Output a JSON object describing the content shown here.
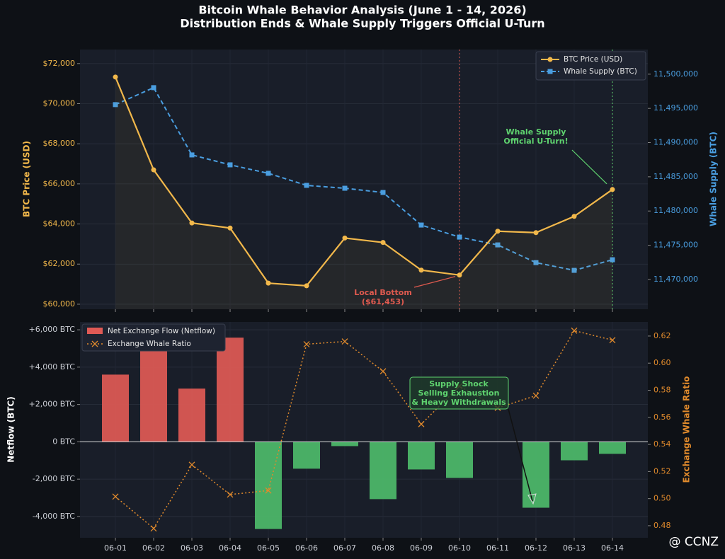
{
  "chart_data": [
    {
      "type": "line",
      "title": "Bitcoin Whale Behavior Analysis (June 1 - 14, 2026)",
      "subtitle": "Distribution Ends & Whale Supply Triggers Official U-Turn",
      "ylabel": "BTC Price (USD)",
      "y2label": "Whale Supply (BTC)",
      "ylim": [
        59750,
        72700
      ],
      "yticks": [
        {
          "value": 60000,
          "label": "$60,000"
        },
        {
          "value": 62000,
          "label": "$62,000"
        },
        {
          "value": 64000,
          "label": "$64,000"
        },
        {
          "value": 66000,
          "label": "$66,000"
        },
        {
          "value": 68000,
          "label": "$68,000"
        },
        {
          "value": 70000,
          "label": "$70,000"
        },
        {
          "value": 72000,
          "label": "$72,000"
        }
      ],
      "y2lim": [
        11465650,
        11503600
      ],
      "y2ticks": [
        {
          "value": 11470000,
          "label": "11,470,000"
        },
        {
          "value": 11475000,
          "label": "11,475,000"
        },
        {
          "value": 11480000,
          "label": "11,480,000"
        },
        {
          "value": 11485000,
          "label": "11,485,000"
        },
        {
          "value": 11490000,
          "label": "11,490,000"
        },
        {
          "value": 11495000,
          "label": "11,495,000"
        },
        {
          "value": 11500000,
          "label": "11,500,000"
        }
      ],
      "grid": true,
      "legend": "upper right",
      "series": [
        {
          "name": "BTC Price (USD)",
          "color": "#f2b84b",
          "values": [
            71330,
            66700,
            64050,
            63800,
            61050,
            60920,
            63300,
            63080,
            61700,
            61453,
            63640,
            63570,
            64380,
            65720
          ]
        },
        {
          "name": "Whale Supply (BTC)",
          "color": "#4a9ee0",
          "axis": "y2",
          "values": [
            11495550,
            11498030,
            11488200,
            11486750,
            11485510,
            11483750,
            11483330,
            11482710,
            11477950,
            11476190,
            11475050,
            11472460,
            11471330,
            11472880
          ]
        }
      ],
      "annotations": [
        {
          "lines": [
            "Local Bottom",
            "($61,453)"
          ],
          "color": "#e05a4f"
        },
        {
          "lines": [
            "Whale Supply",
            "Official U-Turn!"
          ],
          "color": "#5fd36f"
        }
      ]
    },
    {
      "type": "bar",
      "categories": [
        "06-01",
        "06-02",
        "06-03",
        "06-04",
        "06-05",
        "06-06",
        "06-07",
        "06-08",
        "06-09",
        "06-10",
        "06-11",
        "06-12",
        "06-13",
        "06-14"
      ],
      "ylabel": "Netflow (BTC)",
      "y2label": "Exchange Whale Ratio",
      "ylim": [
        -5140,
        6420
      ],
      "yticks": [
        {
          "value": -4000,
          "label": "-4,000 BTC"
        },
        {
          "value": -2000,
          "label": "-2,000 BTC"
        },
        {
          "value": 0,
          "label": "0 BTC"
        },
        {
          "value": 2000,
          "label": "+2,000 BTC"
        },
        {
          "value": 4000,
          "label": "+4,000 BTC"
        },
        {
          "value": 6000,
          "label": "+6,000 BTC"
        }
      ],
      "y2lim": [
        0.4711,
        0.6304
      ],
      "y2ticks": [
        0.48,
        {
          "value": 0.5,
          "label": "0.50"
        },
        0.52,
        0.54,
        0.56,
        0.58,
        {
          "value": 0.6,
          "label": "0.60"
        },
        0.62
      ],
      "grid": true,
      "legend": "upper left",
      "series": [
        {
          "name": "Net Exchange Flow (Netflow)",
          "color": "#e05a55",
          "negative_color": "#4dbb6a",
          "values": [
            3600,
            5400,
            2850,
            5580,
            -4670,
            -1440,
            -230,
            -3070,
            -1480,
            -1935,
            0,
            -3530,
            -990,
            -645
          ]
        },
        {
          "name": "Exchange Whale Ratio",
          "color": "#e08a2c",
          "axis": "y2",
          "values": [
            0.5015,
            0.478,
            0.525,
            0.503,
            0.506,
            0.614,
            0.616,
            0.594,
            0.555,
            0.583,
            0.567,
            0.576,
            0.624,
            0.617
          ]
        }
      ],
      "annotations": [
        {
          "lines": [
            "Supply Shock",
            "Selling Exhaustion",
            "& Heavy Withdrawals"
          ],
          "color": "#5fd36f"
        }
      ]
    }
  ],
  "watermark": "@ CCNZ"
}
